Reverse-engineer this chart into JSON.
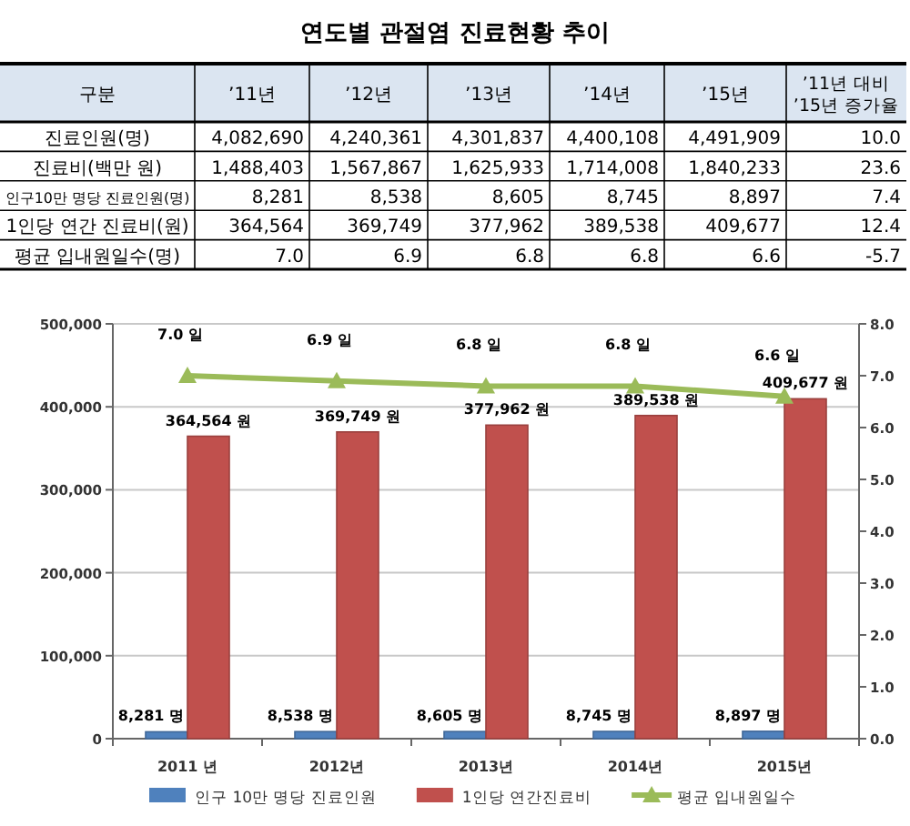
{
  "chart_data": [
    {
      "type": "heatmap",
      "title": "연도별 관절염 진료현황 추이",
      "ylabel": "구분",
      "categories": [
        "’11년",
        "’12년",
        "’13년",
        "’14년",
        "’15년",
        "’11년 대비 ’15년 증가율"
      ],
      "y_categories": [
        "진료인원(명)",
        "진료비(백만 원)",
        "인구10만 명당 진료인원(명)",
        "1인당 연간 진료비(원)",
        "평균 입내원일수(명)"
      ],
      "cells": [
        [
          4082690,
          4240361,
          4301837,
          4400108,
          4491909,
          10.0
        ],
        [
          1488403,
          1567867,
          1625933,
          1714008,
          1840233,
          23.6
        ],
        [
          8281,
          8538,
          8605,
          8745,
          8897,
          7.4
        ],
        [
          364564,
          369749,
          377962,
          389538,
          409677,
          12.4
        ],
        [
          7.0,
          6.9,
          6.8,
          6.8,
          6.6,
          -5.7
        ]
      ],
      "cell_labels": [
        [
          "4,082,690",
          "4,240,361",
          "4,301,837",
          "4,400,108",
          "4,491,909",
          "10.0"
        ],
        [
          "1,488,403",
          "1,567,867",
          "1,625,933",
          "1,714,008",
          "1,840,233",
          "23.6"
        ],
        [
          "8,281",
          "8,538",
          "8,605",
          "8,745",
          "8,897",
          "7.4"
        ],
        [
          "364,564",
          "369,749",
          "377,962",
          "389,538",
          "409,677",
          "12.4"
        ],
        [
          "7.0",
          "6.9",
          "6.8",
          "6.8",
          "6.6",
          "-5.7"
        ]
      ]
    },
    {
      "type": "bar",
      "categories": [
        "2011 년",
        "2012년",
        "2013년",
        "2014년",
        "2015년"
      ],
      "ylim": [
        0,
        500000
      ],
      "yticks": [
        {
          "value": 0,
          "label": "0"
        },
        {
          "value": 100000,
          "label": "100,000"
        },
        {
          "value": 200000,
          "label": "200,000"
        },
        {
          "value": 300000,
          "label": "300,000"
        },
        {
          "value": 400000,
          "label": "400,000"
        },
        {
          "value": 500000,
          "label": "500,000"
        }
      ],
      "y2lim": [
        0,
        8
      ],
      "y2ticks": [
        {
          "value": 0,
          "label": "0.0"
        },
        {
          "value": 1,
          "label": "1.0"
        },
        {
          "value": 2,
          "label": "2.0"
        },
        {
          "value": 3,
          "label": "3.0"
        },
        {
          "value": 4,
          "label": "4.0"
        },
        {
          "value": 5,
          "label": "5.0"
        },
        {
          "value": 6,
          "label": "6.0"
        },
        {
          "value": 7,
          "label": "7.0"
        },
        {
          "value": 8,
          "label": "8.0"
        }
      ],
      "grid": "y",
      "legend": "bottom",
      "series": [
        {
          "name": "인구 10만 명당 진료인원",
          "color": "#4f81bd",
          "values": [
            8281,
            8538,
            8605,
            8745,
            8897
          ],
          "value_labels": [
            "8,281 명",
            "8,538 명",
            "8,605 명",
            "8,745 명",
            "8,897 명"
          ]
        },
        {
          "name": "1인당 연간진료비",
          "color": "#c0504d",
          "values": [
            364564,
            369749,
            377962,
            389538,
            409677
          ],
          "value_labels": [
            "364,564 원",
            "369,749 원",
            "377,962 원",
            "389,538 원",
            "409,677 원"
          ]
        },
        {
          "name": "평균 입내원일수",
          "type": "line",
          "axis": "y2",
          "marker": "triangle",
          "color": "#9bbb59",
          "values": [
            7.0,
            6.9,
            6.8,
            6.8,
            6.6
          ],
          "value_labels": [
            "7.0 일",
            "6.9 일",
            "6.8 일",
            "6.8 일",
            "6.6 일"
          ]
        }
      ]
    }
  ]
}
